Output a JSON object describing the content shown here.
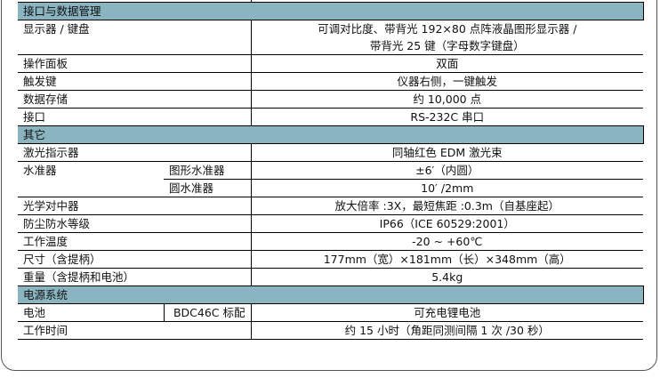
{
  "sections": [
    {
      "title": "接口与数据管理",
      "rows": [
        {
          "label": "显示器 / 键盘",
          "value": "可调对比度、带背光 192×80 点阵液晶图形显示器 /",
          "value2": "带背光 25 键（字母数字键盘）"
        },
        {
          "label": "操作面板",
          "value": "双面"
        },
        {
          "label": "触发键",
          "value": "仪器右侧，一键触发"
        },
        {
          "label": "数据存储",
          "value": "约 10,000 点"
        },
        {
          "label": "接口",
          "value": "RS-232C 串口"
        }
      ]
    },
    {
      "title": "其它",
      "rows": [
        {
          "label": "激光指示器",
          "value": "同轴红色 EDM 激光束"
        },
        {
          "label": "水准器",
          "sub": "图形水准器",
          "value": "±6′（内圆）"
        },
        {
          "sub": "圆水准器",
          "value": "10′ /2mm"
        },
        {
          "label": "光学对中器",
          "value": "放大倍率 :3X，最短焦距 :0.3m（自基座起）"
        },
        {
          "label": "防尘防水等级",
          "value": "IP66（ICE 60529:2001）"
        },
        {
          "label": "工作温度",
          "value": "-20 ~ +60℃"
        },
        {
          "label": "尺寸（含提柄）",
          "value": "177mm（宽）×181mm（长）×348mm（高）"
        },
        {
          "label": "重量（含提柄和电池）",
          "value": "5.4kg"
        }
      ]
    },
    {
      "title": "电源系统",
      "rows": [
        {
          "label": "电池",
          "sub": "BDC46C 标配",
          "value": "可充电锂电池"
        },
        {
          "label": "工作时间",
          "value": "约 15 小时（角距同测间隔 1 次 /30 秒）"
        }
      ]
    }
  ],
  "colors": {
    "section_header": "#8ab4c0"
  }
}
